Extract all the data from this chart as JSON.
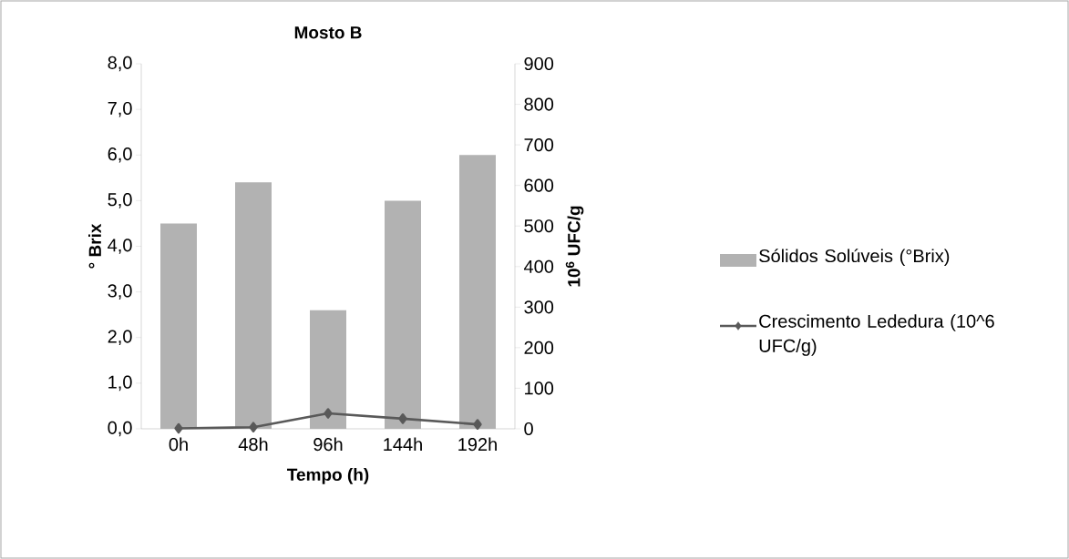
{
  "chart_data": {
    "type": "bar",
    "title": "Mosto B",
    "xlabel": "Tempo (h)",
    "ylabel": "° Brix",
    "y2label": "10$^{6}$ UFC/g",
    "categories": [
      "0h",
      "48h",
      "96h",
      "144h",
      "192h"
    ],
    "series": [
      {
        "name": "Sólidos Solúveis (°Brix)",
        "color": "#b2b2b2",
        "values": [
          4.5,
          5.4,
          2.6,
          5.0,
          6.0
        ]
      },
      {
        "name": "Crescimento Lededura (10^6 UFC/g)",
        "type": "line",
        "axis": "y2",
        "color": "#595959",
        "marker": "diamond",
        "values": [
          1,
          4,
          38,
          25,
          11
        ]
      }
    ],
    "ylim": [
      0,
      8
    ],
    "yticks": [
      {
        "value": 0,
        "label": "0,0"
      },
      {
        "value": 1,
        "label": "1,0"
      },
      {
        "value": 2,
        "label": "2,0"
      },
      {
        "value": 3,
        "label": "3,0"
      },
      {
        "value": 4,
        "label": "4,0"
      },
      {
        "value": 5,
        "label": "5,0"
      },
      {
        "value": 6,
        "label": "6,0"
      },
      {
        "value": 7,
        "label": "7,0"
      },
      {
        "value": 8,
        "label": "8,0"
      }
    ],
    "y2lim": [
      0,
      900
    ],
    "y2ticks": [
      0,
      100,
      200,
      300,
      400,
      500,
      600,
      700,
      800,
      900
    ],
    "legend": "right"
  }
}
